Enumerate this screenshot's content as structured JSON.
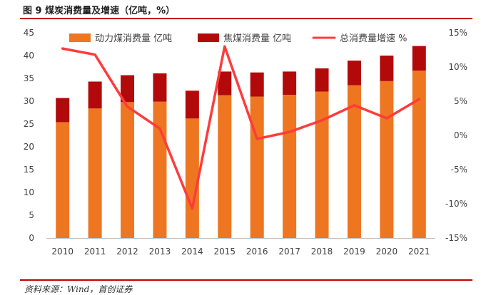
{
  "figure": {
    "caption": "图 9 煤炭消费量及增速（亿吨，%）",
    "source": "资料来源：Wind，首创证券"
  },
  "colors": {
    "bar_power": "#ee7620",
    "bar_coking": "#b20a0a",
    "line_growth": "#ff3b3b",
    "rule": "#c00000"
  },
  "chart_data": {
    "type": "bar",
    "title": "煤炭消费量及增速（亿吨，%）",
    "stacked": true,
    "categories": [
      "2010",
      "2011",
      "2012",
      "2013",
      "2014",
      "2015",
      "2016",
      "2017",
      "2018",
      "2019",
      "2020",
      "2021"
    ],
    "series": [
      {
        "name": "动力煤消费量 亿吨",
        "type": "bar",
        "axis": "left",
        "values": [
          25.4,
          28.4,
          29.8,
          29.9,
          26.2,
          31.3,
          31.0,
          31.4,
          32.1,
          33.5,
          34.4,
          36.7
        ]
      },
      {
        "name": "焦煤消费量 亿吨",
        "type": "bar",
        "axis": "left",
        "values": [
          5.3,
          5.9,
          5.9,
          6.2,
          6.1,
          5.2,
          5.3,
          5.1,
          5.1,
          5.4,
          5.6,
          5.4
        ]
      },
      {
        "name": "总消费量增速 %",
        "type": "line",
        "axis": "right",
        "values": [
          12.7,
          11.8,
          4.2,
          1.0,
          -10.7,
          13.0,
          -0.5,
          0.5,
          2.2,
          4.4,
          2.5,
          5.3
        ]
      }
    ],
    "y_left": {
      "min": 0,
      "max": 45,
      "step": 5,
      "tick_labels": [
        "0",
        "5",
        "10",
        "15",
        "20",
        "25",
        "30",
        "35",
        "40",
        "45"
      ]
    },
    "y_right": {
      "min": -15,
      "max": 15,
      "step": 5,
      "tick_labels": [
        "-15%",
        "-10%",
        "-5%",
        "0%",
        "5%",
        "10%",
        "15%"
      ]
    },
    "legend_position": "top",
    "grid": false
  }
}
